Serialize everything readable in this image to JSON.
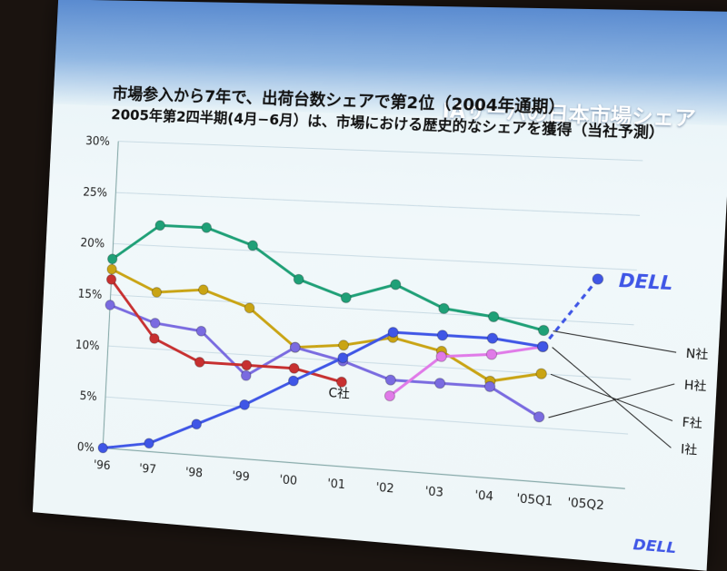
{
  "slide": {
    "title": "IAサーバの日本市場シェア",
    "subtitle_line1": "市場参入から7年で、出荷台数シェアで第2位（2004年通期）",
    "subtitle_line2": "2005年第2四半期(4月−6月）は、市場における歴史的なシェアを獲得（当社予測）",
    "logo_text": "DELL"
  },
  "colors": {
    "N": "#1fa077",
    "F": "#c9a414",
    "H": "#7a6be0",
    "C": "#c73030",
    "I": "#e07ae8",
    "DELL": "#3f56e6"
  },
  "chart_data": {
    "type": "line",
    "x": [
      "'96",
      "'97",
      "'98",
      "'99",
      "'00",
      "'01",
      "'02",
      "'03",
      "'04",
      "'05Q1",
      "'05Q2"
    ],
    "yticks": [
      "0%",
      "5%",
      "10%",
      "15%",
      "20%",
      "25%",
      "30%"
    ],
    "ylim": [
      0,
      30
    ],
    "grid": true,
    "series": [
      {
        "name": "N社",
        "color_key": "N",
        "values": [
          18.5,
          22,
          22,
          20.5,
          17.5,
          16,
          17.5,
          15.5,
          15,
          14,
          null
        ]
      },
      {
        "name": "F社",
        "color_key": "F",
        "values": [
          17.5,
          15.5,
          16,
          14.5,
          11,
          11.5,
          12.5,
          11.5,
          9,
          10,
          null
        ]
      },
      {
        "name": "H社",
        "color_key": "H",
        "values": [
          14,
          12.5,
          12,
          8,
          11,
          10,
          8.5,
          8.5,
          8.5,
          6,
          null
        ]
      },
      {
        "name": "C社",
        "color_key": "C",
        "values": [
          16.5,
          11,
          9,
          9,
          9,
          8,
          null,
          null,
          null,
          null,
          null
        ]
      },
      {
        "name": "I社",
        "color_key": "I",
        "values": [
          null,
          null,
          null,
          null,
          null,
          null,
          7,
          11,
          11.5,
          12.5,
          null
        ]
      },
      {
        "name": "DELL",
        "color_key": "DELL",
        "values": [
          0,
          0.8,
          3,
          5.2,
          7.8,
          10.3,
          13,
          13,
          13,
          12.5,
          19
        ],
        "dashed_from_index": 9
      }
    ],
    "annotations": {
      "C": "C社",
      "N": "N社",
      "H": "H社",
      "F": "F社",
      "I": "I社",
      "DELL": "DELL"
    }
  }
}
